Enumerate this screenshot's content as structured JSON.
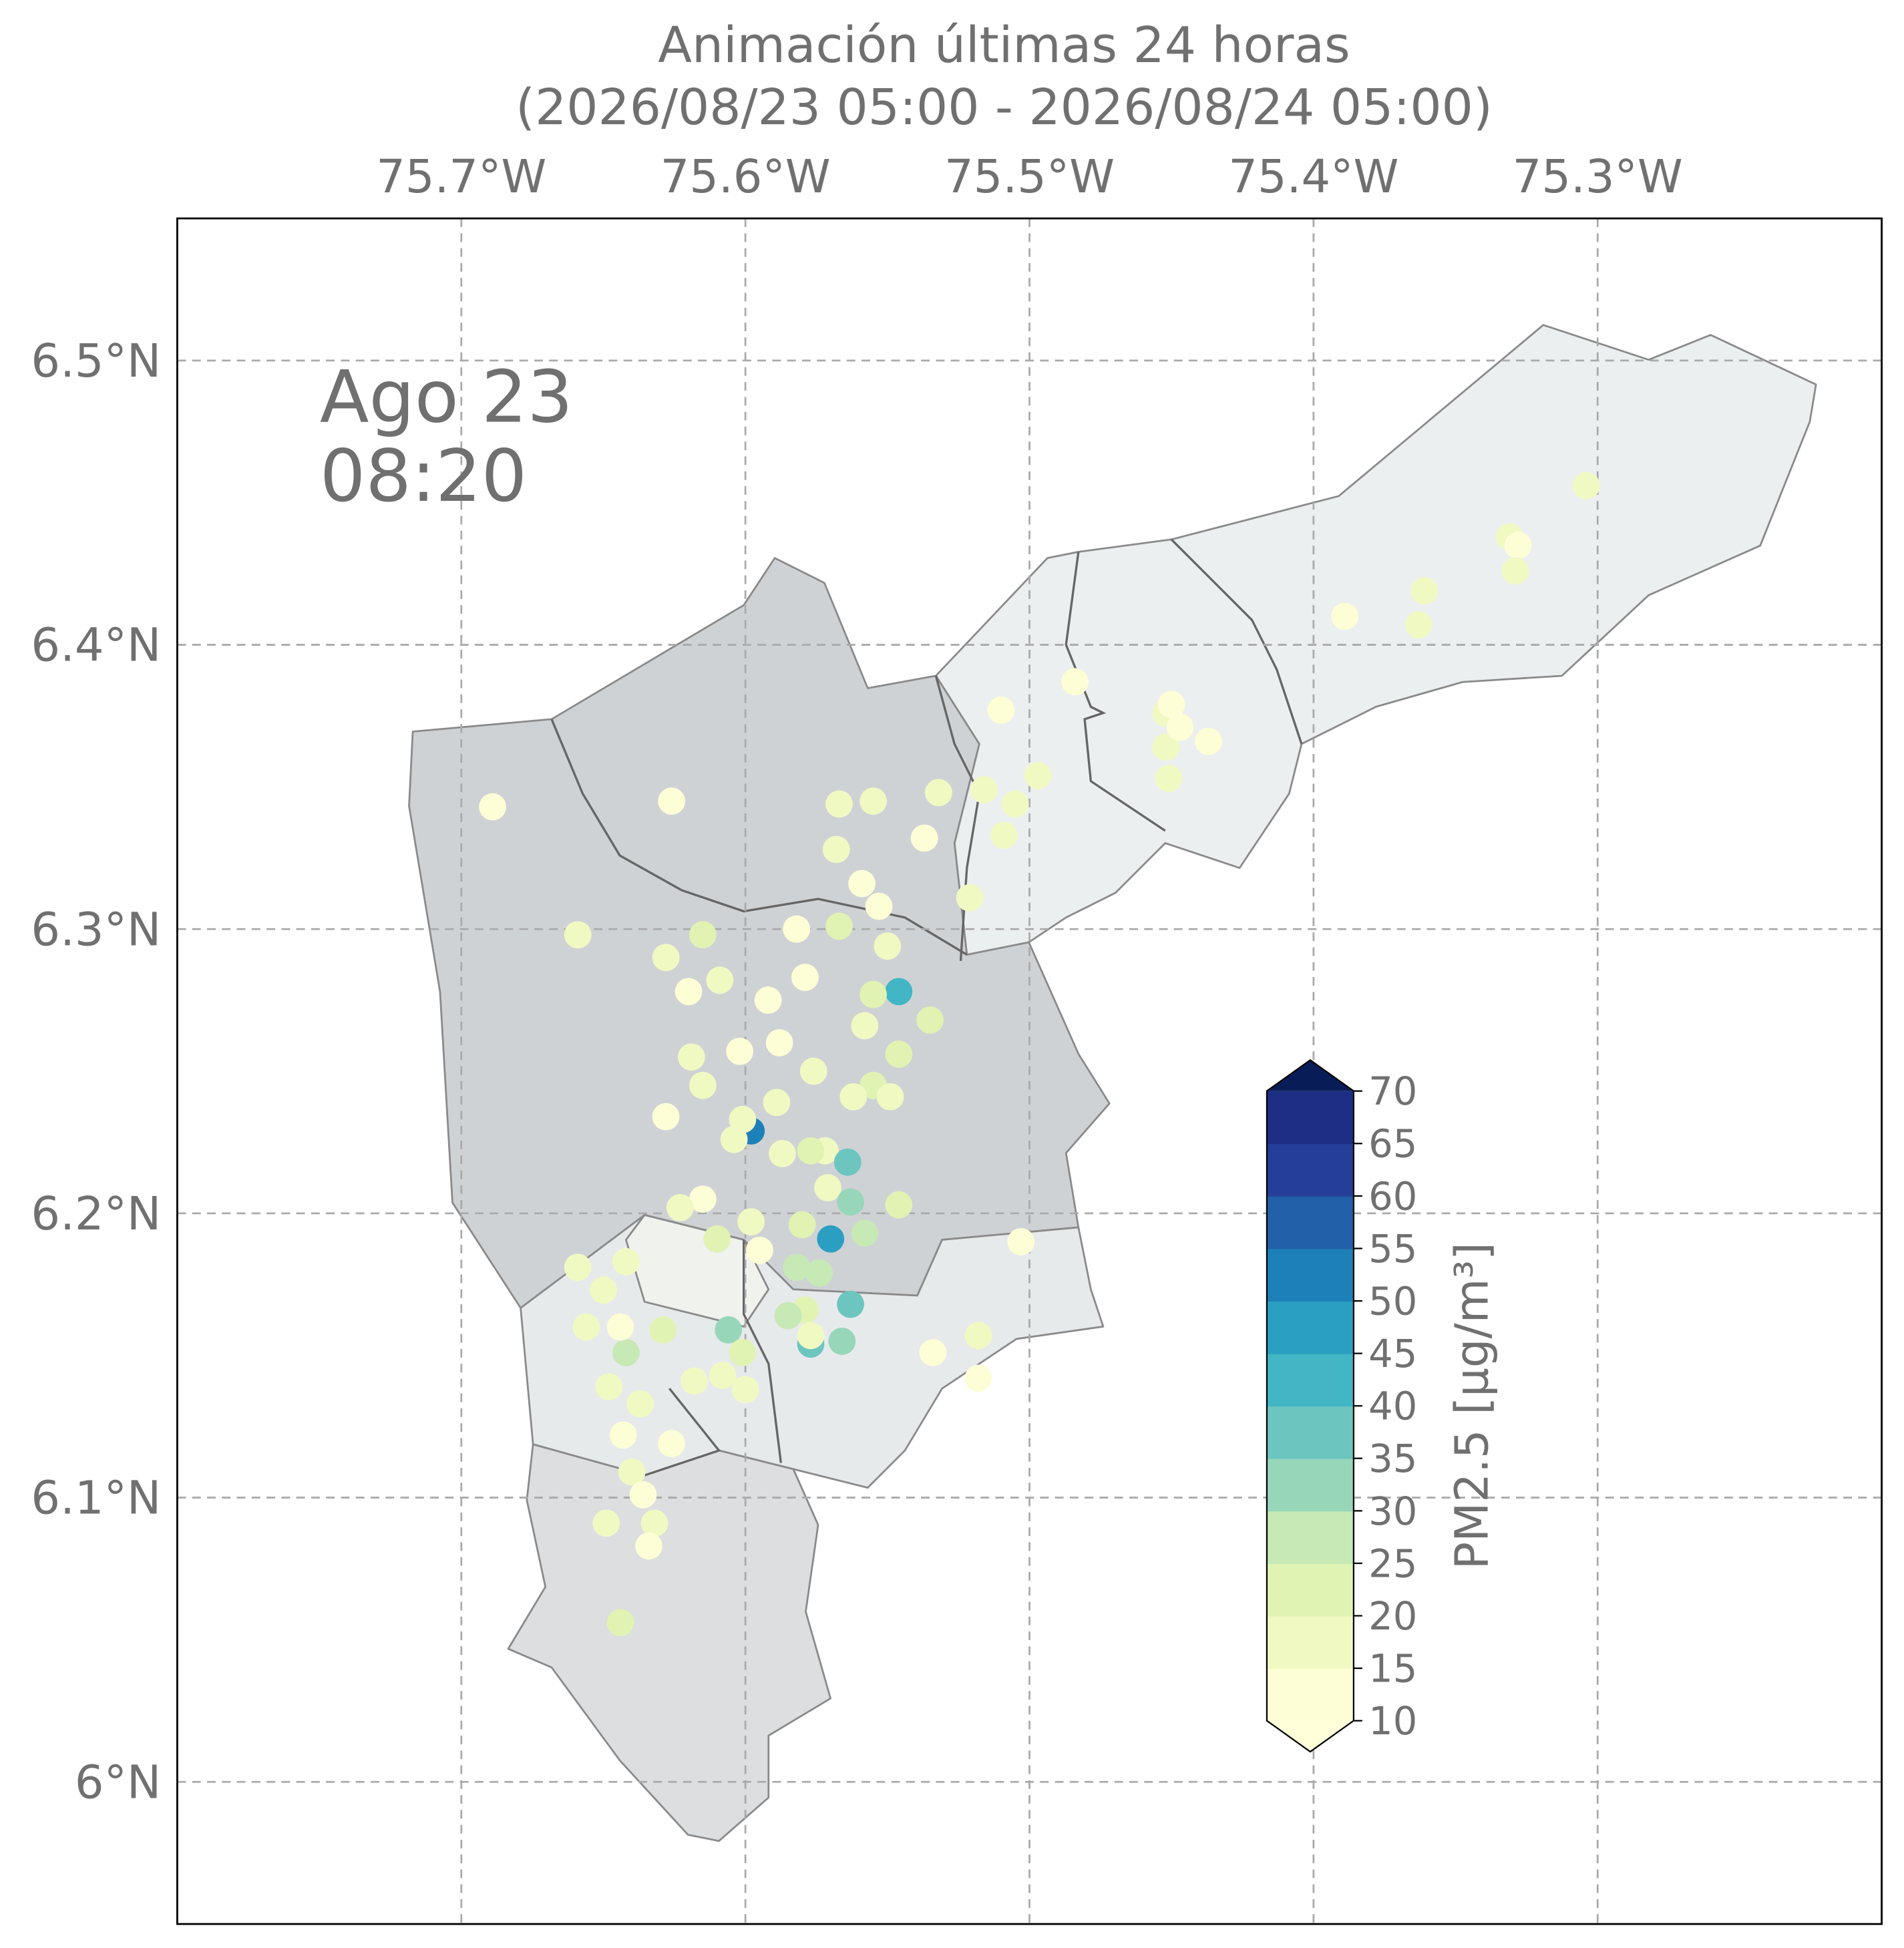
{
  "chart_data": {
    "type": "scatter-map",
    "title": "Animación últimas 24 horas",
    "subtitle": "(2026/08/23 05:00 - 2026/08/24 05:00)",
    "date_label": {
      "day": "Ago 23",
      "time": "08:20"
    },
    "xlim": [
      -75.8,
      -75.2
    ],
    "ylim": [
      5.95,
      6.55
    ],
    "xticks": [
      {
        "value": -75.7,
        "label": "75.7°W"
      },
      {
        "value": -75.6,
        "label": "75.6°W"
      },
      {
        "value": -75.5,
        "label": "75.5°W"
      },
      {
        "value": -75.4,
        "label": "75.4°W"
      },
      {
        "value": -75.3,
        "label": "75.3°W"
      }
    ],
    "yticks": [
      {
        "value": 6.0,
        "label": "6°N"
      },
      {
        "value": 6.1,
        "label": "6.1°N"
      },
      {
        "value": 6.2,
        "label": "6.2°N"
      },
      {
        "value": 6.3,
        "label": "6.3°N"
      },
      {
        "value": 6.4,
        "label": "6.4°N"
      },
      {
        "value": 6.5,
        "label": "6.5°N"
      }
    ],
    "grid": true,
    "x": [
      -75.689,
      -75.626,
      -75.659,
      -75.628,
      -75.615,
      -75.609,
      -75.62,
      -75.628,
      -75.619,
      -75.615,
      -75.602,
      -75.592,
      -75.582,
      -75.579,
      -75.588,
      -75.576,
      -75.567,
      -75.568,
      -75.567,
      -75.555,
      -75.559,
      -75.553,
      -75.546,
      -75.55,
      -75.555,
      -75.558,
      -75.535,
      -75.546,
      -75.555,
      -75.562,
      -75.549,
      -75.598,
      -75.601,
      -75.589,
      -75.604,
      -75.587,
      -75.572,
      -75.564,
      -75.577,
      -75.571,
      -75.563,
      -75.57,
      -75.558,
      -75.546,
      -75.615,
      -75.623,
      -75.61,
      -75.598,
      -75.595,
      -75.58,
      -75.574,
      -75.582,
      -75.577,
      -75.563,
      -75.566,
      -75.579,
      -75.585,
      -75.577,
      -75.606,
      -75.601,
      -75.6,
      -75.608,
      -75.618,
      -75.629,
      -75.637,
      -75.642,
      -75.644,
      -75.642,
      -75.659,
      -75.65,
      -75.656,
      -75.648,
      -75.643,
      -75.626,
      -75.64,
      -75.636,
      -75.649,
      -75.632,
      -75.634,
      -75.644,
      -75.534,
      -75.518,
      -75.518,
      -75.503,
      -75.521,
      -75.532,
      -75.509,
      -75.497,
      -75.51,
      -75.484,
      -75.505,
      -75.516,
      -75.537,
      -75.452,
      -75.45,
      -75.452,
      -75.451,
      -75.437,
      -75.447,
      -75.389,
      -75.363,
      -75.361,
      -75.331,
      -75.328,
      -75.329,
      -75.304
    ],
    "y": [
      6.343,
      6.345,
      6.298,
      6.29,
      6.298,
      6.282,
      6.278,
      6.234,
      6.255,
      6.245,
      6.257,
      6.275,
      6.3,
      6.283,
      6.26,
      6.25,
      6.301,
      6.328,
      6.344,
      6.345,
      6.316,
      6.308,
      6.278,
      6.294,
      6.277,
      6.266,
      6.268,
      6.256,
      6.245,
      6.241,
      6.241,
      6.229,
      6.233,
      6.239,
      6.226,
      6.221,
      6.222,
      6.218,
      6.222,
      6.209,
      6.204,
      6.191,
      6.193,
      6.203,
      6.205,
      6.202,
      6.191,
      6.197,
      6.187,
      6.196,
      6.179,
      6.181,
      6.154,
      6.168,
      6.155,
      6.166,
      6.164,
      6.157,
      6.159,
      6.151,
      6.138,
      6.143,
      6.141,
      6.159,
      6.133,
      6.151,
      6.16,
      6.183,
      6.181,
      6.173,
      6.16,
      6.139,
      6.122,
      6.119,
      6.109,
      6.101,
      6.091,
      6.091,
      6.083,
      6.056,
      6.151,
      6.157,
      6.142,
      6.19,
      6.311,
      6.348,
      6.333,
      6.354,
      6.377,
      6.387,
      6.344,
      6.349,
      6.332,
      6.376,
      6.379,
      6.364,
      6.353,
      6.366,
      6.371,
      6.41,
      6.407,
      6.419,
      6.438,
      6.435,
      6.426,
      6.456
    ],
    "values": [
      12,
      12,
      15,
      17,
      20,
      15,
      14,
      12,
      15,
      17,
      13,
      12,
      12,
      14,
      12,
      16,
      20,
      15,
      16,
      15,
      12,
      13,
      42,
      17,
      22,
      16,
      24,
      23,
      20,
      17,
      16,
      50,
      18,
      15,
      17,
      16,
      17,
      35,
      20,
      15,
      32,
      45,
      28,
      22,
      14,
      17,
      20,
      15,
      14,
      20,
      26,
      28,
      38,
      38,
      34,
      24,
      26,
      18,
      34,
      20,
      16,
      15,
      17,
      20,
      19,
      27,
      14,
      15,
      16,
      18,
      17,
      15,
      12,
      14,
      17,
      12,
      15,
      15,
      13,
      24,
      13,
      18,
      13,
      12,
      18,
      16,
      17,
      15,
      14,
      13,
      16,
      18,
      14,
      15,
      13,
      17,
      15,
      13,
      12,
      12,
      15,
      17,
      17,
      14,
      15,
      16
    ],
    "colorbar": {
      "label": "PM2.5 [μg/m³]",
      "ticks": [
        10,
        15,
        20,
        25,
        30,
        35,
        40,
        45,
        50,
        55,
        60,
        65,
        70
      ],
      "colors": [
        "#fdfed6",
        "#f1f9c3",
        "#e0f3b3",
        "#c6e9b5",
        "#98d6b9",
        "#6cc5bf",
        "#42b6c4",
        "#2b9fc2",
        "#1e80b8",
        "#2260a9",
        "#253f98",
        "#1f2e85"
      ],
      "under_color": "#ffffd9",
      "over_color": "#081d58"
    }
  }
}
